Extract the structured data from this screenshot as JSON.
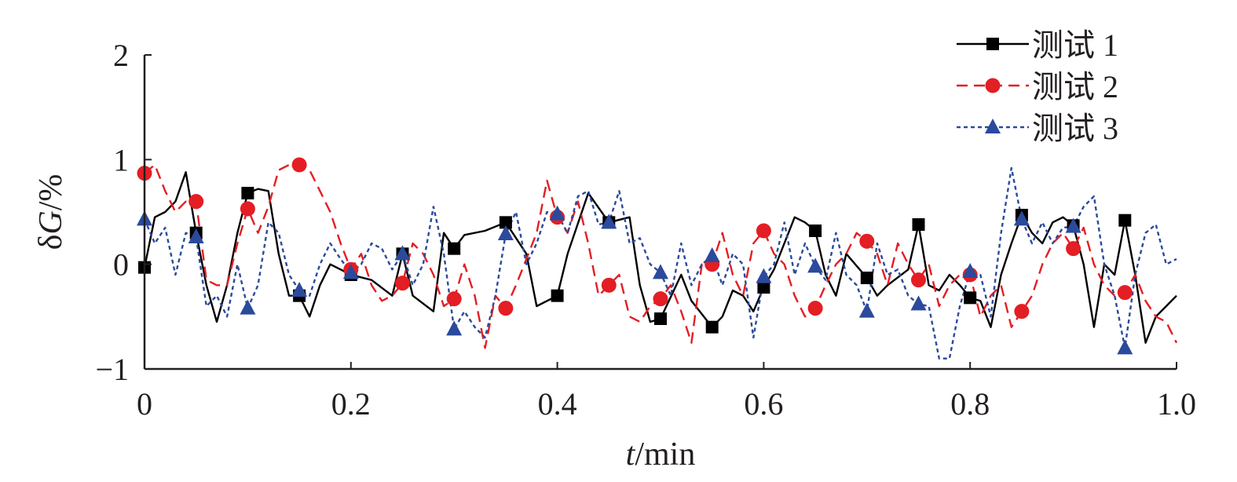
{
  "chart_data": {
    "type": "line",
    "xlabel_italic": "t",
    "xlabel_unit": "/min",
    "ylabel_prefix": "δ",
    "ylabel_italic": "G",
    "ylabel_unit": "/%",
    "xlim": [
      0,
      1.0
    ],
    "ylim": [
      -1,
      2
    ],
    "x_ticks": [
      0,
      0.2,
      0.4,
      0.6,
      0.8,
      1.0
    ],
    "x_tick_labels": [
      "0",
      "0.2",
      "0.4",
      "0.6",
      "0.8",
      "1.0"
    ],
    "y_ticks": [
      -1,
      0,
      1,
      2
    ],
    "y_tick_labels": [
      "−1",
      "0",
      "1",
      "2"
    ],
    "grid": false,
    "legend_position": "top-right",
    "series": [
      {
        "name": "测试 1",
        "color": "#000000",
        "dash": "solid",
        "marker": "square",
        "x": [
          0,
          0.01,
          0.02,
          0.03,
          0.04,
          0.05,
          0.06,
          0.07,
          0.08,
          0.09,
          0.1,
          0.11,
          0.12,
          0.13,
          0.14,
          0.15,
          0.16,
          0.17,
          0.18,
          0.19,
          0.2,
          0.22,
          0.24,
          0.25,
          0.26,
          0.28,
          0.29,
          0.3,
          0.31,
          0.33,
          0.35,
          0.37,
          0.38,
          0.4,
          0.41,
          0.43,
          0.45,
          0.47,
          0.48,
          0.49,
          0.5,
          0.52,
          0.53,
          0.55,
          0.56,
          0.57,
          0.58,
          0.59,
          0.6,
          0.61,
          0.63,
          0.64,
          0.65,
          0.66,
          0.67,
          0.68,
          0.7,
          0.71,
          0.72,
          0.74,
          0.75,
          0.76,
          0.77,
          0.78,
          0.79,
          0.8,
          0.81,
          0.82,
          0.83,
          0.84,
          0.85,
          0.86,
          0.87,
          0.88,
          0.89,
          0.9,
          0.91,
          0.92,
          0.93,
          0.94,
          0.95,
          0.96,
          0.97,
          0.98,
          0.99,
          1.0
        ],
        "y": [
          -0.03,
          0.45,
          0.5,
          0.6,
          0.88,
          0.3,
          -0.2,
          -0.55,
          -0.2,
          0.3,
          0.68,
          0.72,
          0.7,
          0.1,
          -0.3,
          -0.3,
          -0.5,
          -0.2,
          0.0,
          -0.05,
          -0.1,
          -0.15,
          -0.3,
          0.1,
          -0.3,
          -0.45,
          0.3,
          0.15,
          0.28,
          0.32,
          0.4,
          0.1,
          -0.4,
          -0.3,
          0.1,
          0.68,
          0.4,
          0.45,
          -0.2,
          -0.55,
          -0.52,
          -0.1,
          -0.35,
          -0.6,
          -0.5,
          -0.25,
          -0.3,
          -0.45,
          -0.22,
          -0.05,
          0.45,
          0.4,
          0.32,
          -0.1,
          -0.3,
          0.1,
          -0.13,
          -0.3,
          -0.2,
          -0.05,
          0.38,
          -0.2,
          -0.25,
          -0.1,
          -0.2,
          -0.32,
          -0.35,
          -0.6,
          -0.1,
          0.2,
          0.47,
          0.3,
          0.2,
          0.4,
          0.45,
          0.37,
          0.0,
          -0.6,
          0.0,
          -0.1,
          0.42,
          -0.1,
          -0.75,
          -0.5,
          -0.4,
          -0.3
        ]
      },
      {
        "name": "测试 2",
        "color": "#e31e24",
        "dash": "long-dash",
        "marker": "circle",
        "x": [
          0,
          0.01,
          0.02,
          0.03,
          0.04,
          0.05,
          0.06,
          0.07,
          0.08,
          0.09,
          0.1,
          0.11,
          0.12,
          0.13,
          0.14,
          0.15,
          0.16,
          0.17,
          0.18,
          0.19,
          0.2,
          0.21,
          0.22,
          0.23,
          0.24,
          0.25,
          0.26,
          0.27,
          0.28,
          0.29,
          0.3,
          0.31,
          0.32,
          0.33,
          0.34,
          0.35,
          0.36,
          0.37,
          0.38,
          0.39,
          0.4,
          0.41,
          0.42,
          0.43,
          0.44,
          0.45,
          0.46,
          0.47,
          0.48,
          0.49,
          0.5,
          0.51,
          0.52,
          0.53,
          0.54,
          0.55,
          0.56,
          0.57,
          0.58,
          0.59,
          0.6,
          0.61,
          0.62,
          0.63,
          0.64,
          0.65,
          0.66,
          0.67,
          0.68,
          0.69,
          0.7,
          0.71,
          0.72,
          0.73,
          0.74,
          0.75,
          0.76,
          0.77,
          0.78,
          0.79,
          0.8,
          0.81,
          0.82,
          0.83,
          0.84,
          0.85,
          0.86,
          0.87,
          0.88,
          0.89,
          0.9,
          0.91,
          0.92,
          0.93,
          0.94,
          0.95,
          0.96,
          0.97,
          0.98,
          0.99,
          1.0
        ],
        "y": [
          0.87,
          0.95,
          0.7,
          0.5,
          0.6,
          0.6,
          -0.15,
          -0.2,
          -0.2,
          0.2,
          0.53,
          0.3,
          0.55,
          0.9,
          0.95,
          0.95,
          0.9,
          0.7,
          0.5,
          0.2,
          -0.05,
          0.1,
          -0.2,
          -0.35,
          -0.3,
          -0.18,
          0.2,
          0.1,
          -0.1,
          -0.4,
          -0.33,
          0.0,
          -0.3,
          -0.8,
          -0.3,
          -0.42,
          -0.2,
          0.05,
          0.3,
          0.8,
          0.45,
          0.3,
          0.6,
          0.2,
          -0.3,
          -0.2,
          -0.1,
          -0.5,
          -0.55,
          -0.4,
          -0.33,
          -0.2,
          -0.45,
          -0.75,
          0.0,
          0.0,
          0.3,
          -0.1,
          -0.3,
          0.2,
          0.32,
          0.1,
          0.0,
          -0.3,
          -0.5,
          -0.42,
          -0.2,
          0.0,
          0.1,
          0.3,
          0.22,
          0.1,
          -0.2,
          0.2,
          0.0,
          -0.15,
          0.0,
          -0.4,
          -0.2,
          -0.1,
          -0.1,
          -0.5,
          -0.3,
          -0.2,
          -0.6,
          -0.45,
          -0.3,
          0.0,
          0.2,
          0.3,
          0.15,
          0.35,
          0.0,
          -0.2,
          -0.3,
          -0.27,
          -0.1,
          -0.35,
          -0.5,
          -0.55,
          -0.75
        ]
      },
      {
        "name": "测试 3",
        "color": "#2b4a9c",
        "dash": "short-dash",
        "marker": "triangle",
        "x": [
          0,
          0.01,
          0.02,
          0.03,
          0.04,
          0.05,
          0.06,
          0.07,
          0.08,
          0.09,
          0.1,
          0.11,
          0.12,
          0.13,
          0.14,
          0.15,
          0.16,
          0.17,
          0.18,
          0.19,
          0.2,
          0.21,
          0.22,
          0.23,
          0.24,
          0.25,
          0.26,
          0.27,
          0.28,
          0.29,
          0.3,
          0.31,
          0.32,
          0.33,
          0.34,
          0.35,
          0.36,
          0.37,
          0.38,
          0.39,
          0.4,
          0.41,
          0.42,
          0.43,
          0.44,
          0.45,
          0.46,
          0.47,
          0.48,
          0.49,
          0.5,
          0.51,
          0.52,
          0.53,
          0.54,
          0.55,
          0.56,
          0.57,
          0.58,
          0.59,
          0.6,
          0.61,
          0.62,
          0.63,
          0.64,
          0.65,
          0.66,
          0.67,
          0.68,
          0.69,
          0.7,
          0.71,
          0.72,
          0.73,
          0.74,
          0.75,
          0.76,
          0.77,
          0.78,
          0.79,
          0.8,
          0.81,
          0.82,
          0.83,
          0.84,
          0.85,
          0.86,
          0.87,
          0.88,
          0.89,
          0.9,
          0.91,
          0.92,
          0.93,
          0.94,
          0.95,
          0.96,
          0.97,
          0.98,
          0.99,
          1.0
        ],
        "y": [
          0.43,
          0.2,
          0.35,
          -0.1,
          0.3,
          0.26,
          -0.4,
          -0.3,
          -0.5,
          0.0,
          -0.42,
          -0.2,
          0.4,
          0.3,
          -0.1,
          -0.25,
          -0.3,
          0.0,
          0.2,
          0.05,
          -0.08,
          0.0,
          0.2,
          0.15,
          -0.05,
          0.1,
          -0.2,
          0.0,
          0.55,
          0.1,
          -0.62,
          -0.45,
          -0.6,
          -0.7,
          -0.3,
          0.29,
          0.5,
          0.0,
          0.2,
          0.5,
          0.48,
          0.3,
          0.65,
          0.7,
          0.38,
          0.4,
          0.7,
          0.2,
          0.25,
          0.0,
          -0.08,
          -0.3,
          0.2,
          -0.2,
          0.0,
          0.08,
          -0.2,
          0.1,
          0.0,
          -0.7,
          -0.12,
          0.0,
          0.4,
          -0.1,
          0.2,
          -0.02,
          -0.15,
          0.3,
          -0.1,
          -0.2,
          -0.45,
          0.2,
          -0.1,
          -0.05,
          -0.3,
          -0.38,
          -0.4,
          -0.9,
          -0.9,
          -0.4,
          -0.07,
          -0.1,
          -0.5,
          0.3,
          0.92,
          0.43,
          0.2,
          0.4,
          0.2,
          0.35,
          0.36,
          0.55,
          0.65,
          0.0,
          -0.3,
          -0.8,
          -0.1,
          0.3,
          0.38,
          0.0,
          0.05
        ]
      }
    ]
  }
}
